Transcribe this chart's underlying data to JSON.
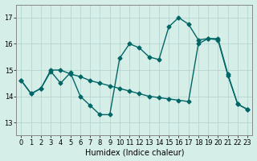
{
  "title": "",
  "xlabel": "Humidex (Indice chaleur)",
  "background_color": "#d6eee8",
  "grid_color": "#b0d0cc",
  "line_color": "#006666",
  "xlim": [
    -0.5,
    23.5
  ],
  "ylim": [
    12.5,
    17.5
  ],
  "yticks": [
    13,
    14,
    15,
    16,
    17
  ],
  "xticks": [
    0,
    1,
    2,
    3,
    4,
    5,
    6,
    7,
    8,
    9,
    10,
    11,
    12,
    13,
    14,
    15,
    16,
    17,
    18,
    19,
    20,
    21,
    22,
    23
  ],
  "line1_x": [
    0,
    1,
    2,
    3,
    4,
    5,
    6,
    7,
    8,
    9,
    10,
    11,
    12,
    13,
    14,
    15,
    16,
    17,
    18,
    19,
    20,
    21,
    22,
    23
  ],
  "line1_y": [
    14.6,
    14.1,
    14.3,
    14.95,
    14.5,
    14.9,
    14.0,
    13.65,
    13.3,
    13.3,
    15.45,
    16.0,
    15.85,
    15.5,
    15.4,
    16.65,
    17.0,
    16.75,
    16.15,
    16.2,
    16.2,
    14.85,
    13.7,
    13.5
  ],
  "line2_x": [
    0,
    1,
    2,
    3,
    4,
    5,
    6,
    7,
    8,
    9,
    10,
    11,
    12,
    13,
    14,
    15,
    16,
    17,
    18,
    19,
    20,
    21,
    22,
    23
  ],
  "line2_y": [
    14.6,
    14.1,
    14.3,
    15.0,
    15.0,
    14.85,
    14.75,
    14.6,
    14.5,
    14.4,
    14.3,
    14.2,
    14.1,
    14.0,
    13.95,
    13.9,
    13.85,
    13.8,
    16.0,
    16.2,
    16.15,
    14.8,
    13.7,
    13.5
  ],
  "marker": "D",
  "markersize": 2.5,
  "linewidth": 1.0,
  "xlabel_fontsize": 7,
  "tick_fontsize": 6
}
